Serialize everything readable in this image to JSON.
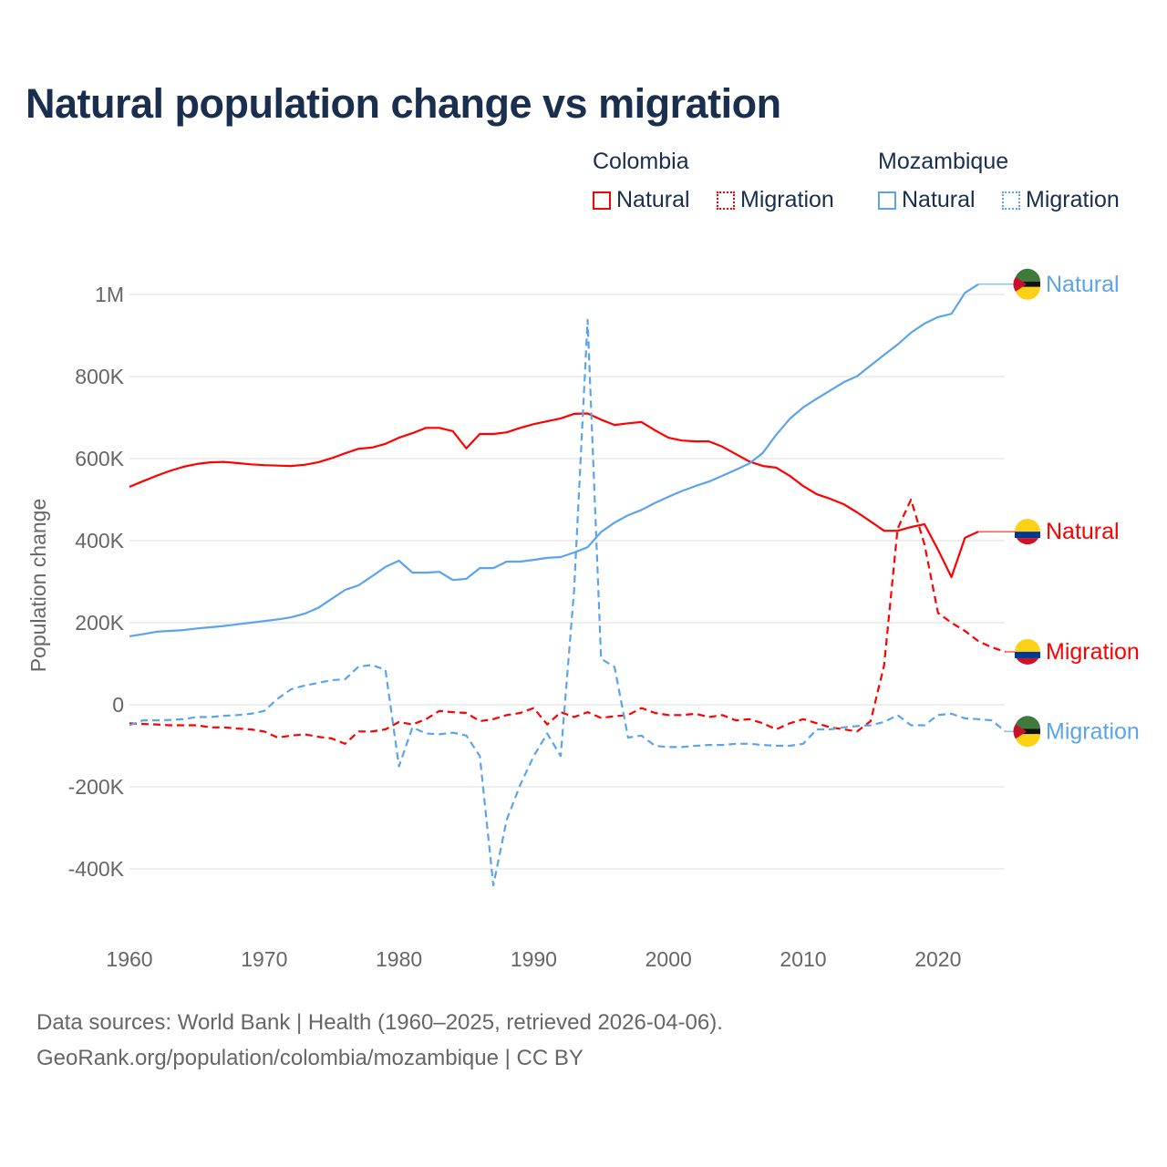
{
  "chart_data": {
    "type": "line",
    "title": "Natural population change vs migration",
    "xlabel": "",
    "ylabel": "Population change",
    "xlim": [
      1960,
      2025
    ],
    "ylim": [
      -400000,
      1000000
    ],
    "x_ticks": [
      "1960",
      "1970",
      "1980",
      "1990",
      "2000",
      "2010",
      "2020"
    ],
    "y_ticks": [
      {
        "value": 1000000,
        "label": "1M"
      },
      {
        "value": 800000,
        "label": "800K"
      },
      {
        "value": 600000,
        "label": "600K"
      },
      {
        "value": 400000,
        "label": "400K"
      },
      {
        "value": 200000,
        "label": "200K"
      },
      {
        "value": 0,
        "label": "0"
      },
      {
        "value": -200000,
        "label": "-200K"
      },
      {
        "value": -400000,
        "label": "-400K"
      }
    ],
    "grid": true,
    "legend_placement": "top-right",
    "legend": [
      {
        "group": "Colombia",
        "items": [
          "Natural",
          "Migration"
        ]
      },
      {
        "group": "Mozambique",
        "items": [
          "Natural",
          "Migration"
        ]
      }
    ],
    "series": [
      {
        "name": "Colombia Natural",
        "country": "Colombia",
        "kind": "Natural",
        "color": "#ff0000",
        "dash": false,
        "end_label": "Natural",
        "start_year": 1960,
        "values": [
          531000,
          545000,
          558000,
          570000,
          580000,
          587000,
          591000,
          592000,
          589000,
          586000,
          584000,
          583000,
          582000,
          585000,
          591000,
          601000,
          613000,
          624000,
          627000,
          636000,
          651000,
          662000,
          675000,
          675000,
          667000,
          625000,
          660000,
          660000,
          664000,
          675000,
          684000,
          691000,
          698000,
          709000,
          710000,
          695000,
          682000,
          686000,
          689000,
          669000,
          651000,
          644000,
          642000,
          642000,
          629000,
          611000,
          593000,
          582000,
          578000,
          558000,
          533000,
          513000,
          502000,
          489000,
          469000,
          447000,
          424000,
          424000,
          433000,
          440000,
          378000,
          311000,
          407000,
          422000
        ]
      },
      {
        "name": "Colombia Migration",
        "country": "Colombia",
        "kind": "Migration",
        "color": "#ff0000",
        "dash": true,
        "end_label": "Migration",
        "start_year": 1960,
        "values": [
          -45000,
          -47000,
          -48000,
          -50000,
          -50000,
          -50000,
          -55000,
          -55000,
          -58000,
          -60000,
          -65000,
          -80000,
          -75000,
          -72000,
          -78000,
          -82000,
          -95000,
          -65000,
          -65000,
          -60000,
          -42000,
          -48000,
          -35000,
          -15000,
          -18000,
          -20000,
          -40000,
          -35000,
          -25000,
          -20000,
          -8000,
          -48000,
          -18000,
          -30000,
          -18000,
          -32000,
          -28000,
          -25000,
          -8000,
          -20000,
          -25000,
          -25000,
          -22000,
          -30000,
          -25000,
          -38000,
          -35000,
          -45000,
          -60000,
          -45000,
          -35000,
          -45000,
          -55000,
          -60000,
          -65000,
          -40000,
          96000,
          429000,
          500000,
          391000,
          224000,
          200000,
          180000,
          155000,
          140000,
          129000
        ]
      },
      {
        "name": "Mozambique Natural",
        "country": "Mozambique",
        "kind": "Natural",
        "color": "#5ba4ec",
        "dash": false,
        "end_label": "Natural",
        "start_year": 1960,
        "values": [
          167000,
          172000,
          178000,
          180000,
          182000,
          186000,
          189000,
          192000,
          196000,
          200000,
          204000,
          208000,
          213000,
          222000,
          236000,
          258000,
          280000,
          291000,
          313000,
          336000,
          351000,
          322000,
          322000,
          324000,
          304000,
          307000,
          333000,
          333000,
          349000,
          349000,
          353000,
          358000,
          360000,
          371000,
          384000,
          421000,
          444000,
          462000,
          475000,
          492000,
          507000,
          521000,
          533000,
          544000,
          558000,
          573000,
          588000,
          614000,
          658000,
          697000,
          725000,
          746000,
          766000,
          786000,
          801000,
          827000,
          853000,
          878000,
          907000,
          929000,
          945000,
          953000,
          1004000,
          1025000
        ]
      },
      {
        "name": "Mozambique Migration",
        "country": "Mozambique",
        "kind": "Migration",
        "color": "#5ba4ec",
        "dash": true,
        "end_label": "Migration",
        "start_year": 1960,
        "values": [
          -50000,
          -38000,
          -38000,
          -37000,
          -35000,
          -30000,
          -30000,
          -27000,
          -25000,
          -22000,
          -15000,
          15000,
          38000,
          47000,
          53000,
          60000,
          62000,
          93000,
          97000,
          85000,
          -150000,
          -55000,
          -70000,
          -72000,
          -68000,
          -75000,
          -125000,
          -440000,
          -280000,
          -195000,
          -125000,
          -70000,
          -125000,
          280000,
          938000,
          112000,
          92000,
          -80000,
          -75000,
          -100000,
          -103000,
          -103000,
          -100000,
          -98000,
          -98000,
          -95000,
          -95000,
          -98000,
          -100000,
          -100000,
          -95000,
          -60000,
          -60000,
          -55000,
          -52000,
          -50000,
          -42000,
          -25000,
          -50000,
          -50000,
          -25000,
          -22000,
          -33000,
          -35000,
          -38000,
          -65000
        ]
      }
    ]
  },
  "footer": {
    "line1": "Data sources: World Bank | Health (1960–2025, retrieved 2026-04-06).",
    "line2": "GeoRank.org/population/colombia/mozambique | CC BY"
  }
}
